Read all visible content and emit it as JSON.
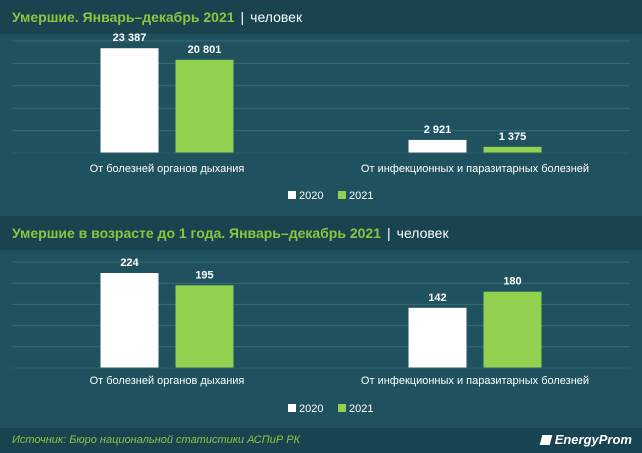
{
  "colors": {
    "series_2020": "#ffffff",
    "series_2021": "#92d050",
    "grid": "#3a6b77",
    "text": "#ffffff",
    "accent": "#8cc63f"
  },
  "chart_data": [
    {
      "type": "bar",
      "title": "Умершие. Январь–декабрь 2021",
      "unit": "человек",
      "categories": [
        "От болезней органов дыхания",
        "От инфекционных и паразитарных болезней"
      ],
      "series": [
        {
          "name": "2020",
          "values": [
            23387,
            2921
          ],
          "labels": [
            "23 387",
            "2 921"
          ]
        },
        {
          "name": "2021",
          "values": [
            20801,
            1375
          ],
          "labels": [
            "20 801",
            "1 375"
          ]
        }
      ],
      "ylim": [
        0,
        25000
      ],
      "grid": true,
      "legend": "bottom"
    },
    {
      "type": "bar",
      "title": "Умершие в возрасте до 1 года. Январь–декабрь 2021",
      "unit": "человек",
      "categories": [
        "От болезней органов дыхания",
        "От инфекционных и паразитарных болезней"
      ],
      "series": [
        {
          "name": "2020",
          "values": [
            224,
            142
          ],
          "labels": [
            "224",
            "142"
          ]
        },
        {
          "name": "2021",
          "values": [
            195,
            180
          ],
          "labels": [
            "195",
            "180"
          ]
        }
      ],
      "ylim": [
        0,
        250
      ],
      "grid": true,
      "legend": "bottom"
    }
  ],
  "footer": {
    "source": "Источник: Бюро национальной статистики АСПиР РК",
    "logo": "EnergyProm"
  }
}
